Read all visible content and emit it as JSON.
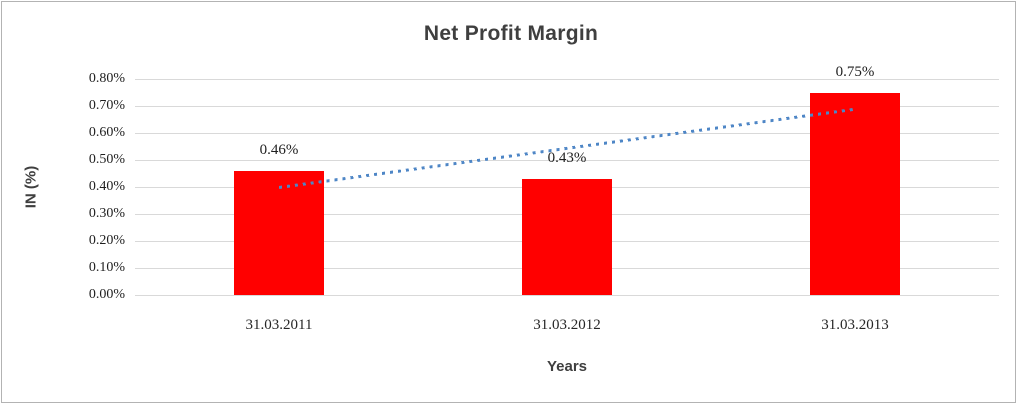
{
  "frame": {
    "background": "#ffffff",
    "border_color": "#b3b3b3"
  },
  "chart_data": {
    "type": "bar",
    "title": "Net Profit Margin",
    "xlabel": "Years",
    "ylabel": "IN (%)",
    "categories": [
      "31.03.2011",
      "31.03.2012",
      "31.03.2013"
    ],
    "values": [
      0.46,
      0.43,
      0.75
    ],
    "data_labels": [
      "0.46%",
      "0.43%",
      "0.75%"
    ],
    "ylim": [
      0,
      0.8
    ],
    "ytick_labels": [
      "0.00%",
      "0.10%",
      "0.20%",
      "0.30%",
      "0.40%",
      "0.50%",
      "0.60%",
      "0.70%",
      "0.80%"
    ],
    "grid": true,
    "legend_position": "none",
    "bar_color": "#ff0000",
    "gridline_color": "#d9d9d9",
    "trendline": {
      "style": "linear-dotted",
      "color": "#4e86c6",
      "start_value": 0.4,
      "end_value": 0.69
    }
  }
}
